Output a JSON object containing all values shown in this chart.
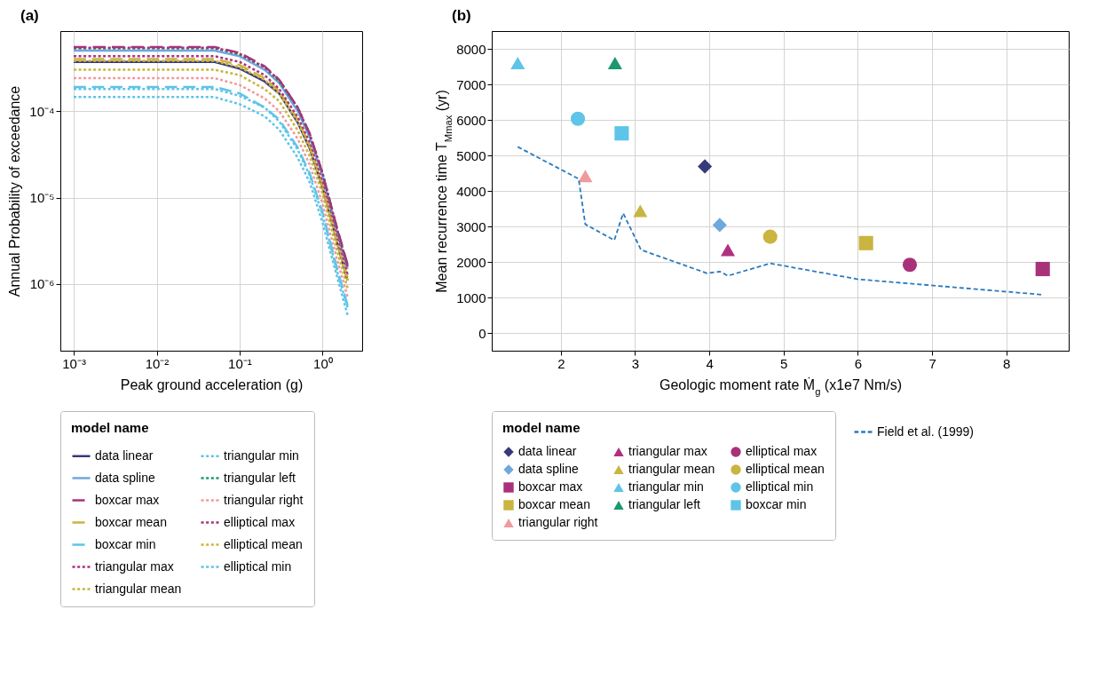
{
  "chart_data": [
    {
      "type": "line",
      "title": "(a)",
      "xlabel": "Peak ground acceleration (g)",
      "ylabel": "Annual Probability of exceedance",
      "legend_title": "model name",
      "log": "xy",
      "grid": true,
      "legend": "bottom",
      "xlim": [
        0.00069,
        3.0
      ],
      "ylim": [
        1.7e-07,
        0.00084
      ],
      "xticks": [
        {
          "value": 0.001,
          "label": "10⁻³"
        },
        {
          "value": 0.01,
          "label": "10⁻²"
        },
        {
          "value": 0.1,
          "label": "10⁻¹"
        },
        {
          "value": 1,
          "label": "10⁰"
        }
      ],
      "yticks": [
        {
          "value": 1e-06,
          "label": "10⁻⁶"
        },
        {
          "value": 1e-05,
          "label": "10⁻⁵"
        },
        {
          "value": 0.0001,
          "label": "10⁻⁴"
        }
      ],
      "x": [
        0.001,
        0.01,
        0.05,
        0.1,
        0.2,
        0.3,
        0.5,
        0.7,
        1,
        1.5,
        2
      ],
      "series": [
        {
          "name": "data linear",
          "color": "#383a78",
          "line_style": "solid",
          "values": [
            0.00037,
            0.00037,
            0.00037,
            0.00031,
            0.00022,
            0.00016,
            7.4e-05,
            3.7e-05,
            1.3e-05,
            3e-06,
            1.1e-06
          ]
        },
        {
          "name": "data spline",
          "color": "#6ea8dc",
          "line_style": "solid",
          "values": [
            0.0005,
            0.0005,
            0.0005,
            0.00043,
            0.0003,
            0.00021,
            0.0001,
            5e-05,
            1.8e-05,
            4e-06,
            1.5e-06
          ]
        },
        {
          "name": "boxcar max",
          "color": "#a8327a",
          "line_style": "dashed",
          "values": [
            0.00055,
            0.00055,
            0.00055,
            0.00047,
            0.00033,
            0.00023,
            0.00011,
            5.5e-05,
            1.9e-05,
            4.4e-06,
            1.7e-06
          ]
        },
        {
          "name": "boxcar mean",
          "color": "#c9b53f",
          "line_style": "dashed",
          "values": [
            0.0004,
            0.0004,
            0.0004,
            0.00034,
            0.00024,
            0.00017,
            8e-05,
            4e-05,
            1.4e-05,
            3.2e-06,
            1.2e-06
          ]
        },
        {
          "name": "boxcar min",
          "color": "#5ec4e8",
          "line_style": "dashed",
          "values": [
            0.00019,
            0.00019,
            0.00019,
            0.00016,
            0.00011,
            8e-05,
            3.8e-05,
            1.9e-05,
            6.7e-06,
            1.5e-06,
            5.7e-07
          ]
        },
        {
          "name": "triangular max",
          "color": "#b03080",
          "line_style": "dotted",
          "values": [
            0.00043,
            0.00043,
            0.00043,
            0.00037,
            0.00026,
            0.00018,
            8.6e-05,
            4.3e-05,
            1.5e-05,
            3.4e-06,
            1.3e-06
          ]
        },
        {
          "name": "triangular mean",
          "color": "#c9b53f",
          "line_style": "dotted",
          "values": [
            0.0003,
            0.0003,
            0.0003,
            0.00026,
            0.00018,
            0.00013,
            6e-05,
            3e-05,
            1.1e-05,
            2.4e-06,
            9e-07
          ]
        },
        {
          "name": "triangular min",
          "color": "#5ec4e8",
          "line_style": "dotted",
          "values": [
            0.000145,
            0.000145,
            0.000145,
            0.00012,
            8.7e-05,
            6.1e-05,
            2.9e-05,
            1.5e-05,
            5.1e-06,
            1.2e-06,
            4.4e-07
          ]
        },
        {
          "name": "triangular left",
          "color": "#1a9a6c",
          "line_style": "dotted",
          "values": [
            0.00053,
            0.00053,
            0.00053,
            0.00045,
            0.00032,
            0.00022,
            0.00011,
            5.3e-05,
            1.9e-05,
            4.2e-06,
            1.6e-06
          ]
        },
        {
          "name": "triangular right",
          "color": "#f09a9a",
          "line_style": "dotted",
          "values": [
            0.00024,
            0.00024,
            0.00024,
            0.0002,
            0.00014,
            0.0001,
            4.8e-05,
            2.4e-05,
            8.4e-06,
            1.9e-06,
            7.2e-07
          ]
        },
        {
          "name": "elliptical max",
          "color": "#a8327a",
          "line_style": "dotted",
          "values": [
            0.00054,
            0.00054,
            0.00054,
            0.00046,
            0.00032,
            0.00023,
            0.00011,
            5.4e-05,
            1.9e-05,
            4.3e-06,
            1.6e-06
          ]
        },
        {
          "name": "elliptical mean",
          "color": "#d4b23a",
          "line_style": "dotted",
          "values": [
            0.00038,
            0.00038,
            0.00038,
            0.00032,
            0.00023,
            0.00016,
            7.6e-05,
            3.8e-05,
            1.3e-05,
            3e-06,
            1.1e-06
          ]
        },
        {
          "name": "elliptical min",
          "color": "#5ec4e8",
          "line_style": "dotted",
          "values": [
            0.00018,
            0.00018,
            0.00018,
            0.00015,
            0.00011,
            7.6e-05,
            3.6e-05,
            1.8e-05,
            6.3e-06,
            1.4e-06,
            5.4e-07
          ]
        }
      ]
    },
    {
      "type": "scatter",
      "title": "(b)",
      "xlabel": "Geologic moment rate Ṁ$_{g}$ (x1e7 Nm/s)",
      "ylabel": "Mean recurrence time T$_{Mmax}$ (yr)",
      "legend_title": "model name",
      "grid": true,
      "legend": "bottom",
      "xlim": [
        1.07,
        8.84
      ],
      "ylim": [
        -500,
        8500
      ],
      "xticks": [
        2,
        3,
        4,
        5,
        6,
        7,
        8
      ],
      "yticks": [
        0,
        1000,
        2000,
        3000,
        4000,
        5000,
        6000,
        7000,
        8000
      ],
      "series": [
        {
          "name": "data linear",
          "color": "#383a78",
          "marker": "diamond",
          "x": [
            3.94
          ],
          "values": [
            4690
          ]
        },
        {
          "name": "data spline",
          "color": "#6ea8dc",
          "marker": "diamond",
          "x": [
            4.14
          ],
          "values": [
            3040
          ]
        },
        {
          "name": "boxcar max",
          "color": "#a8327a",
          "marker": "square",
          "x": [
            8.49
          ],
          "values": [
            1800
          ]
        },
        {
          "name": "boxcar mean",
          "color": "#c9b53f",
          "marker": "square",
          "x": [
            6.11
          ],
          "values": [
            2530
          ]
        },
        {
          "name": "boxcar min",
          "color": "#5ec4e8",
          "marker": "square",
          "x": [
            2.82
          ],
          "values": [
            5620
          ]
        },
        {
          "name": "triangular max",
          "color": "#b03080",
          "marker": "triangle",
          "x": [
            4.25
          ],
          "values": [
            2340
          ]
        },
        {
          "name": "triangular mean",
          "color": "#c9b53f",
          "marker": "triangle",
          "x": [
            3.07
          ],
          "values": [
            3440
          ]
        },
        {
          "name": "triangular min",
          "color": "#5ec4e8",
          "marker": "triangle",
          "x": [
            1.42
          ],
          "values": [
            7600
          ]
        },
        {
          "name": "triangular left",
          "color": "#1a9a6c",
          "marker": "triangle",
          "x": [
            2.73
          ],
          "values": [
            7600
          ]
        },
        {
          "name": "triangular right",
          "color": "#f09a9a",
          "marker": "triangle",
          "x": [
            2.33
          ],
          "values": [
            4420
          ]
        },
        {
          "name": "elliptical max",
          "color": "#a8327a",
          "marker": "circle",
          "x": [
            6.7
          ],
          "values": [
            1920
          ]
        },
        {
          "name": "elliptical mean",
          "color": "#c9b53f",
          "marker": "circle",
          "x": [
            4.82
          ],
          "values": [
            2710
          ]
        },
        {
          "name": "elliptical min",
          "color": "#5ec4e8",
          "marker": "circle",
          "x": [
            2.23
          ],
          "values": [
            6030
          ]
        },
        {
          "name": "Field et al. (1999)",
          "type": "line",
          "color": "#2a7abf",
          "line_style": "dashed",
          "x": [
            1.42,
            2.24,
            2.33,
            2.72,
            2.84,
            3.08,
            3.97,
            4.14,
            4.25,
            4.82,
            6.01,
            6.7,
            8.47
          ],
          "values": [
            5240,
            4340,
            3060,
            2610,
            3370,
            2340,
            1680,
            1730,
            1610,
            1960,
            1510,
            1390,
            1080
          ]
        }
      ]
    }
  ]
}
